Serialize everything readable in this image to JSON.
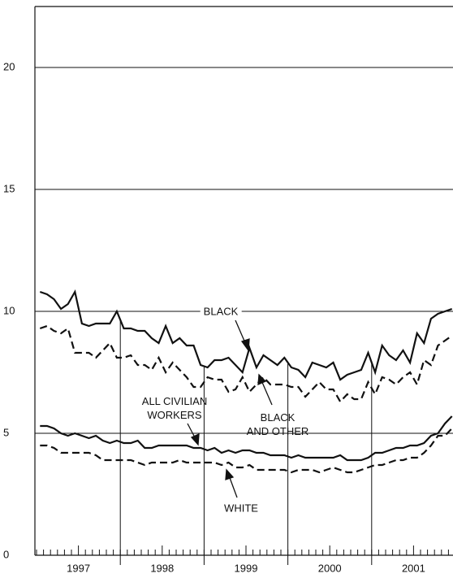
{
  "chart_data": {
    "type": "line",
    "categories": [
      null,
      null,
      null,
      null,
      null,
      null,
      null,
      null,
      null,
      null,
      null,
      null,
      null,
      null,
      null,
      null,
      null,
      null,
      null,
      null,
      null,
      null,
      null,
      null,
      null,
      null,
      null,
      null,
      null,
      null,
      null,
      null,
      null,
      null,
      null,
      null,
      null,
      null,
      null,
      null,
      null,
      null,
      null,
      null,
      null,
      null,
      null,
      null,
      null,
      null,
      null,
      null,
      null,
      null,
      null,
      null,
      null,
      null,
      null,
      null
    ],
    "year_labels": [
      "1997",
      "1998",
      "1999",
      "2000",
      "2001"
    ],
    "ylim": [
      0,
      22.5
    ],
    "yticks": [
      0,
      5,
      10,
      15,
      20
    ],
    "grid": true,
    "series": [
      {
        "name": [
          "BLACK"
        ],
        "color": "#111111",
        "dashed": false,
        "values": [
          10.8,
          10.7,
          10.5,
          10.1,
          10.3,
          10.8,
          9.5,
          9.4,
          9.5,
          9.5,
          9.5,
          10.0,
          9.3,
          9.3,
          9.2,
          9.2,
          8.9,
          8.7,
          9.4,
          8.7,
          8.9,
          8.6,
          8.6,
          7.8,
          7.7,
          8.0,
          8.0,
          8.1,
          7.8,
          7.5,
          8.5,
          7.7,
          8.2,
          8.0,
          7.8,
          8.1,
          7.7,
          7.6,
          7.3,
          7.9,
          7.8,
          7.7,
          7.9,
          7.2,
          7.4,
          7.5,
          7.6,
          8.3,
          7.5,
          8.6,
          8.2,
          8.0,
          8.4,
          7.9,
          9.1,
          8.7,
          9.7,
          9.9,
          10.0,
          10.1
        ]
      },
      {
        "name": [
          "BLACK",
          "AND OTHER"
        ],
        "color": "#111111",
        "dashed": true,
        "values": [
          9.3,
          9.4,
          9.2,
          9.1,
          9.3,
          8.3,
          8.3,
          8.3,
          8.1,
          8.4,
          8.7,
          8.1,
          8.1,
          8.2,
          7.8,
          7.8,
          7.6,
          8.1,
          7.5,
          7.9,
          7.6,
          7.3,
          6.9,
          6.9,
          7.3,
          7.2,
          7.2,
          6.7,
          6.8,
          7.3,
          6.7,
          7.0,
          7.3,
          7.0,
          7.0,
          7.0,
          6.9,
          6.9,
          6.5,
          6.8,
          7.1,
          6.8,
          6.8,
          6.3,
          6.6,
          6.4,
          6.4,
          7.1,
          6.6,
          7.3,
          7.2,
          7.0,
          7.3,
          7.5,
          7.0,
          8.0,
          7.8,
          8.6,
          8.8,
          9.0
        ]
      },
      {
        "name": [
          "ALL CIVILIAN",
          "WORKERS"
        ],
        "color": "#111111",
        "dashed": false,
        "values": [
          5.3,
          5.3,
          5.2,
          5.0,
          4.9,
          5.0,
          4.9,
          4.8,
          4.9,
          4.7,
          4.6,
          4.7,
          4.6,
          4.6,
          4.7,
          4.4,
          4.4,
          4.5,
          4.5,
          4.5,
          4.5,
          4.5,
          4.4,
          4.4,
          4.3,
          4.4,
          4.2,
          4.3,
          4.2,
          4.3,
          4.3,
          4.2,
          4.2,
          4.1,
          4.1,
          4.1,
          4.0,
          4.1,
          4.0,
          4.0,
          4.0,
          4.0,
          4.0,
          4.1,
          3.9,
          3.9,
          3.9,
          4.0,
          4.2,
          4.2,
          4.3,
          4.4,
          4.4,
          4.5,
          4.5,
          4.6,
          4.9,
          5.0,
          5.4,
          5.7
        ]
      },
      {
        "name": [
          "WHITE"
        ],
        "color": "#111111",
        "dashed": true,
        "values": [
          4.5,
          4.5,
          4.4,
          4.2,
          4.2,
          4.2,
          4.2,
          4.2,
          4.1,
          3.9,
          3.9,
          3.9,
          3.9,
          3.9,
          3.8,
          3.7,
          3.8,
          3.8,
          3.8,
          3.8,
          3.9,
          3.8,
          3.8,
          3.8,
          3.8,
          3.8,
          3.7,
          3.8,
          3.6,
          3.6,
          3.7,
          3.5,
          3.5,
          3.5,
          3.5,
          3.5,
          3.4,
          3.5,
          3.5,
          3.5,
          3.4,
          3.5,
          3.6,
          3.5,
          3.4,
          3.4,
          3.5,
          3.6,
          3.7,
          3.7,
          3.8,
          3.9,
          3.9,
          4.0,
          4.0,
          4.2,
          4.5,
          4.9,
          4.9,
          5.2
        ]
      }
    ]
  }
}
